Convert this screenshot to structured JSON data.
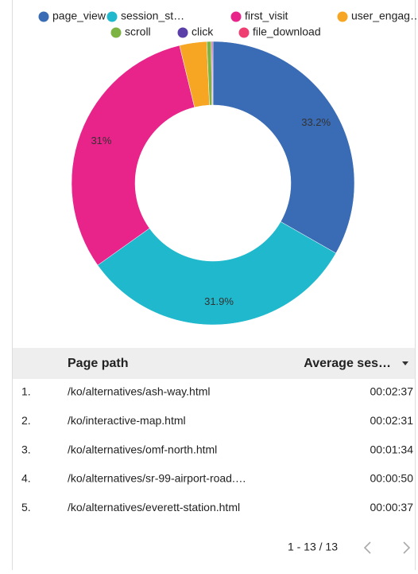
{
  "chart_data": {
    "type": "pie",
    "donut": true,
    "series": [
      {
        "name": "page_view",
        "color": "#3a6bb5",
        "values": [
          33.2
        ]
      },
      {
        "name": "session_st…",
        "color": "#1fb8cc",
        "values": [
          31.9
        ]
      },
      {
        "name": "first_visit",
        "color": "#e8238a",
        "values": [
          31
        ]
      },
      {
        "name": "user_engag…",
        "color": "#f6a623",
        "values": [
          3.1
        ]
      },
      {
        "name": "scroll",
        "color": "#7cb342",
        "values": [
          0.5
        ]
      },
      {
        "name": "click",
        "color": "#5b3fa8",
        "values": [
          0.1
        ]
      },
      {
        "name": "file_download",
        "color": "#ef3f72",
        "values": [
          0.1
        ]
      }
    ],
    "value_labels": [
      "33.2%",
      "31.9%",
      "31%",
      null,
      null,
      null,
      null
    ]
  },
  "table": {
    "columns": [
      "Page path",
      "Average ses…"
    ],
    "rows": [
      [
        "1.",
        "/ko/alternatives/ash-way.html",
        "00:02:37"
      ],
      [
        "2.",
        "/ko/interactive-map.html",
        "00:02:31"
      ],
      [
        "3.",
        "/ko/alternatives/omf-north.html",
        "00:01:34"
      ],
      [
        "4.",
        "/ko/alternatives/sr-99-airport-road.…",
        "00:00:50"
      ],
      [
        "5.",
        "/ko/alternatives/everett-station.html",
        "00:00:37"
      ]
    ],
    "pagination": "1 - 13 / 13"
  }
}
